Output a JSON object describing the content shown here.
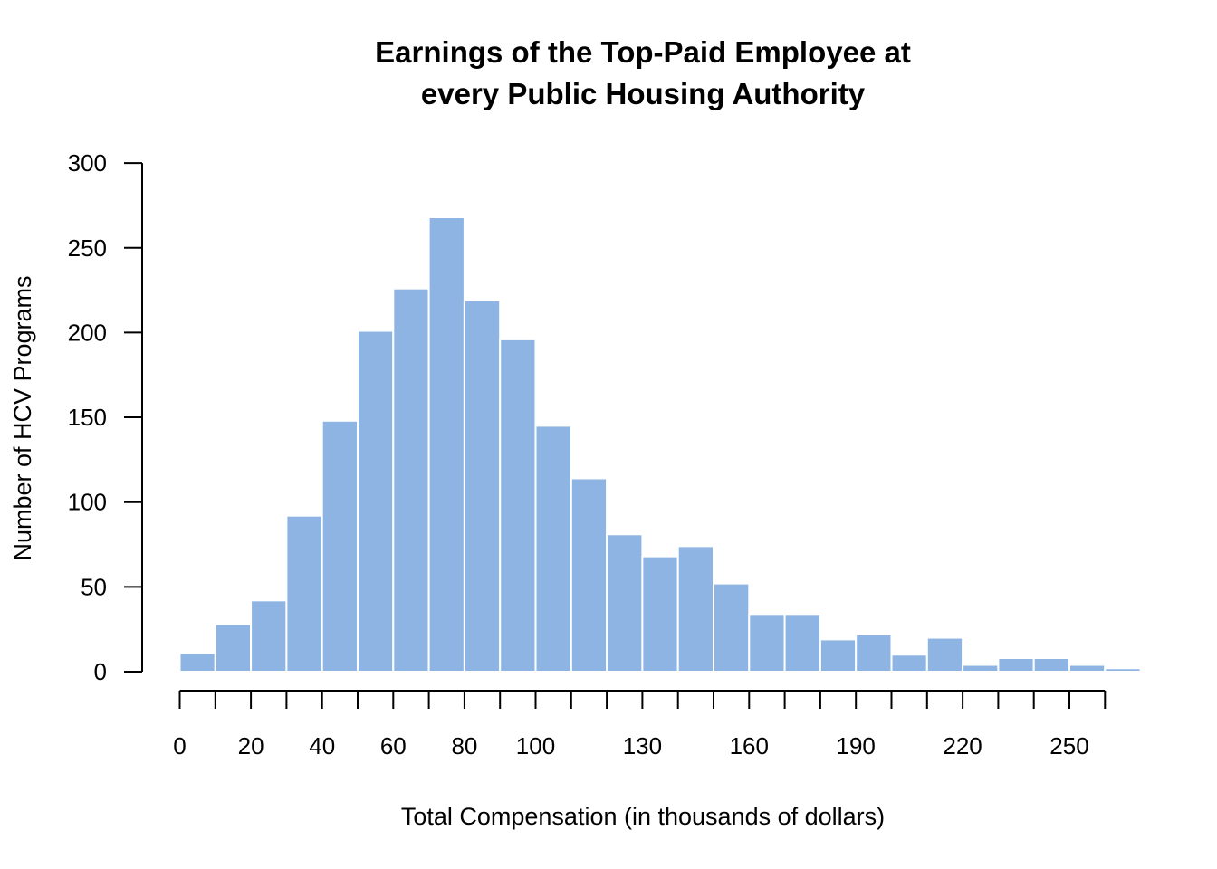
{
  "chart_data": {
    "type": "bar",
    "title_lines": [
      "Earnings of the Top-Paid Employee at",
      "every Public Housing Authority"
    ],
    "xlabel": "Total Compensation (in thousands of dollars)",
    "ylabel": "Number of HCV Programs",
    "bar_color": "#8db4e2",
    "bin_width": 10,
    "bin_start": 0,
    "values": [
      11,
      28,
      42,
      92,
      148,
      201,
      226,
      268,
      219,
      196,
      145,
      114,
      81,
      68,
      74,
      52,
      34,
      34,
      19,
      22,
      10,
      20,
      4,
      8,
      8,
      4,
      2
    ],
    "ylim": [
      0,
      300
    ],
    "y_ticks": [
      0,
      50,
      100,
      150,
      200,
      250,
      300
    ],
    "x_axis_range": [
      0,
      260
    ],
    "x_tick_labels": [
      {
        "value": 0,
        "label": "0"
      },
      {
        "value": 20,
        "label": "20"
      },
      {
        "value": 40,
        "label": "40"
      },
      {
        "value": 60,
        "label": "60"
      },
      {
        "value": 80,
        "label": "80"
      },
      {
        "value": 100,
        "label": "100"
      },
      {
        "value": 130,
        "label": "130"
      },
      {
        "value": 160,
        "label": "160"
      },
      {
        "value": 190,
        "label": "190"
      },
      {
        "value": 220,
        "label": "220"
      },
      {
        "value": 250,
        "label": "250"
      }
    ],
    "grid": false,
    "legend": "none"
  }
}
